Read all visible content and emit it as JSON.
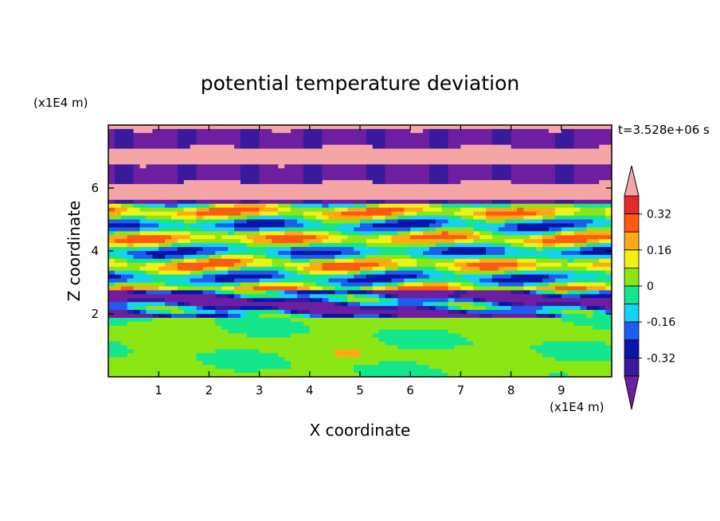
{
  "chart_data": {
    "type": "heatmap",
    "title": "potential temperature deviation",
    "xlabel": "X coordinate",
    "ylabel": "Z coordinate",
    "x_unit": "(x1E4 m)",
    "y_unit": "(x1E4 m)",
    "time_label": "t=3.528e+06 s",
    "xlim": [
      0,
      10
    ],
    "ylim": [
      0,
      8
    ],
    "x_ticks": [
      1,
      2,
      3,
      4,
      5,
      6,
      7,
      8,
      9
    ],
    "y_ticks": [
      2,
      4,
      6
    ],
    "colorbar": {
      "levels": [
        -0.4,
        -0.32,
        -0.24,
        -0.16,
        -0.08,
        0,
        0.08,
        0.16,
        0.24,
        0.32,
        0.4
      ],
      "colors": [
        "#6e1fa0",
        "#3a1a9c",
        "#0a14a8",
        "#1f5cf0",
        "#14d2f0",
        "#14e68c",
        "#8ce614",
        "#f0f014",
        "#ffaa14",
        "#ff5a14",
        "#e62828",
        "#f5a5a5"
      ],
      "tick_labels": [
        "0.32",
        "0.16",
        "0",
        "-0.16",
        "-0.32"
      ],
      "tick_values": [
        0.32,
        0.16,
        0,
        -0.16,
        -0.32
      ]
    },
    "layers": [
      {
        "z_range": [
          0,
          1.9
        ],
        "dominant": "0",
        "pattern": "green near-zero with lighter green swirls"
      },
      {
        "z_range": [
          1.9,
          2.7
        ],
        "dominant": "-0.32",
        "pattern": "dark blue/purple bands with red streaks"
      },
      {
        "z_range": [
          2.7,
          5.5
        ],
        "dominant": "mixed",
        "pattern": "interleaved cyan, yellow, orange, red and blue streaks"
      },
      {
        "z_range": [
          5.5,
          8.0
        ],
        "dominant": "alternating",
        "pattern": "pink and purple horizontal bands"
      }
    ],
    "grid": false,
    "legend": "colorbar-right"
  }
}
